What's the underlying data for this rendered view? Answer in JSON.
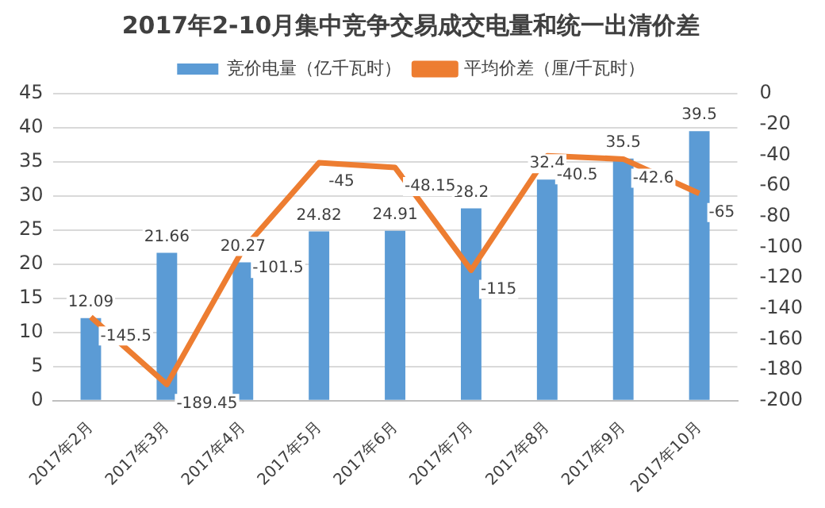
{
  "chart_data": {
    "type": "bar",
    "title": "2017年2-10月集中竞争交易成交电量和统一出清价差",
    "categories": [
      "2017年2月",
      "2017年3月",
      "2017年4月",
      "2017年5月",
      "2017年6月",
      "2017年7月",
      "2017年8月",
      "2017年9月",
      "2017年10月"
    ],
    "series": [
      {
        "name": "竞价电量（亿千瓦时）",
        "color": "#5b9bd5",
        "values": [
          12.09,
          21.66,
          20.27,
          24.82,
          24.91,
          28.2,
          32.4,
          35.5,
          39.5
        ]
      },
      {
        "name": "平均价差（厘/千瓦时）",
        "type": "line",
        "axis": "y2",
        "color": "#ed7d31",
        "values": [
          -145.5,
          -189.45,
          -101.5,
          -45,
          -48.15,
          -115,
          -40.5,
          -42.6,
          -65
        ]
      }
    ],
    "ylim": [
      0,
      45
    ],
    "yticks": [
      0,
      5,
      10,
      15,
      20,
      25,
      30,
      35,
      40,
      45
    ],
    "y2lim": [
      -200,
      0
    ],
    "y2ticks": [
      -200,
      -180,
      -160,
      -140,
      -120,
      -100,
      -80,
      -60,
      -40,
      -20,
      0
    ],
    "grid": "y",
    "legend": "top",
    "data_labels": true,
    "marker": "none"
  }
}
